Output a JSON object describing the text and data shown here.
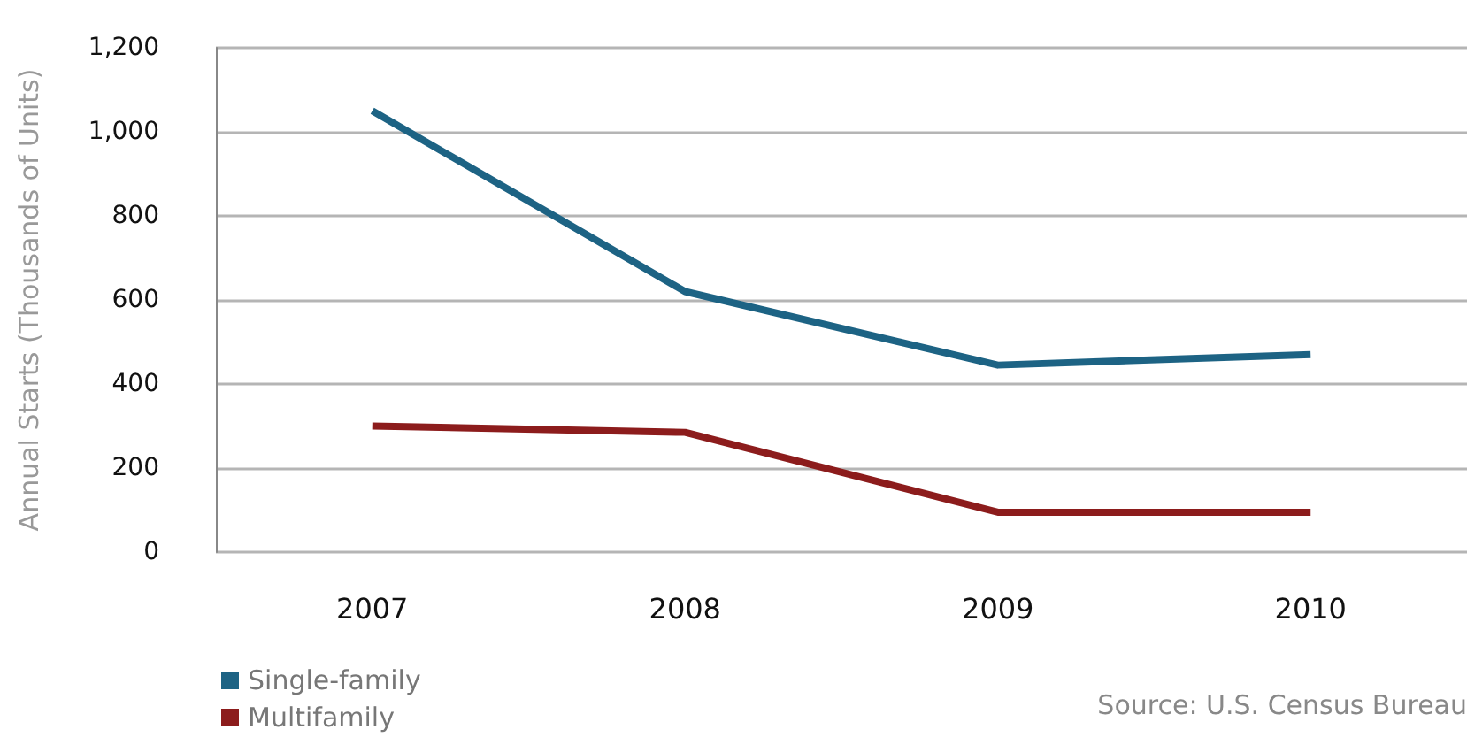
{
  "chart_data": {
    "type": "line",
    "ylabel": "Annual Starts (Thousands of Units)",
    "categories": [
      "2007",
      "2008",
      "2009",
      "2010"
    ],
    "series": [
      {
        "name": "Single-family",
        "color": "#1d6384",
        "values": [
          1050,
          620,
          445,
          470
        ]
      },
      {
        "name": "Multifamily",
        "color": "#8c1c1c",
        "values": [
          300,
          285,
          95,
          95
        ]
      }
    ],
    "ylim": [
      0,
      1200
    ],
    "yticks": [
      0,
      200,
      400,
      600,
      800,
      {
        "value": 1000,
        "label": "1,000"
      },
      {
        "value": 1200,
        "label": "1,200"
      }
    ],
    "grid": "y",
    "legend": "bottom left",
    "marker": "none",
    "line_style": "solid",
    "annotations": [
      "Source: U.S. Census Bureau"
    ]
  }
}
